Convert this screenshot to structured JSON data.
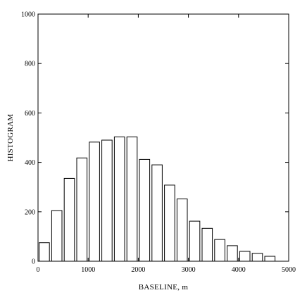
{
  "chart_data": {
    "type": "bar",
    "title": "",
    "xlabel": "BASELINE, m",
    "ylabel": "HISTOGRAM",
    "xlim": [
      0,
      5000
    ],
    "ylim": [
      0,
      1000
    ],
    "x_ticks": [
      0,
      1000,
      2000,
      3000,
      4000,
      5000
    ],
    "y_ticks": [
      0,
      200,
      400,
      600,
      800,
      1000
    ],
    "bin_width": 250,
    "bars": [
      {
        "x": 0,
        "value": 75
      },
      {
        "x": 250,
        "value": 205
      },
      {
        "x": 500,
        "value": 335
      },
      {
        "x": 750,
        "value": 418
      },
      {
        "x": 1000,
        "value": 482
      },
      {
        "x": 1250,
        "value": 490
      },
      {
        "x": 1500,
        "value": 503
      },
      {
        "x": 1750,
        "value": 503
      },
      {
        "x": 2000,
        "value": 412
      },
      {
        "x": 2250,
        "value": 390
      },
      {
        "x": 2500,
        "value": 308
      },
      {
        "x": 2750,
        "value": 252
      },
      {
        "x": 3000,
        "value": 162
      },
      {
        "x": 3250,
        "value": 133
      },
      {
        "x": 3500,
        "value": 88
      },
      {
        "x": 3750,
        "value": 63
      },
      {
        "x": 4000,
        "value": 40
      },
      {
        "x": 4250,
        "value": 32
      },
      {
        "x": 4500,
        "value": 20
      }
    ],
    "grid": false,
    "legend": "none"
  }
}
